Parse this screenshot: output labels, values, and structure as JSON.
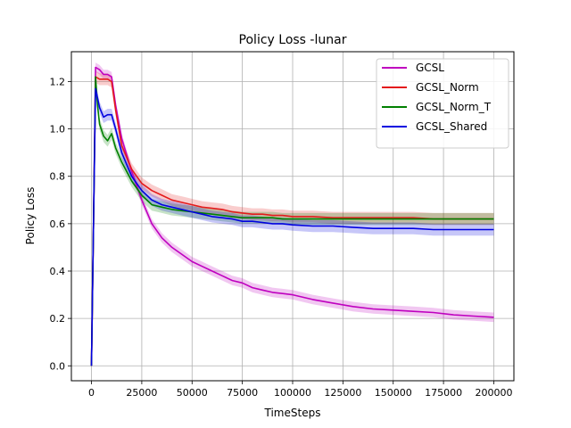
{
  "chart_data": {
    "type": "line",
    "title": "Policy Loss -lunar",
    "xlabel": "TimeSteps",
    "ylabel": "Policy Loss",
    "xlim": [
      -10000,
      210000
    ],
    "ylim": [
      -0.063,
      1.326
    ],
    "xticks": [
      0,
      25000,
      50000,
      75000,
      100000,
      125000,
      150000,
      175000,
      200000
    ],
    "xtick_labels": [
      "0",
      "25000",
      "50000",
      "75000",
      "100000",
      "125000",
      "150000",
      "175000",
      "200000"
    ],
    "yticks": [
      0.0,
      0.2,
      0.4,
      0.6,
      0.8,
      1.0,
      1.2
    ],
    "ytick_labels": [
      "0.0",
      "0.2",
      "0.4",
      "0.6",
      "0.8",
      "1.0",
      "1.2"
    ],
    "grid": true,
    "legend_position": "top-right",
    "legend": [
      "GCSL",
      "GCSL_Norm",
      "GCSL_Norm_T",
      "GCSL_Shared"
    ],
    "series": [
      {
        "name": "GCSL",
        "color": "#bf00bf",
        "band": 0.02,
        "x": [
          0,
          1000,
          2000,
          4000,
          6000,
          8000,
          10000,
          12000,
          15000,
          20000,
          25000,
          30000,
          35000,
          40000,
          45000,
          50000,
          55000,
          60000,
          65000,
          70000,
          75000,
          80000,
          85000,
          90000,
          95000,
          100000,
          110000,
          120000,
          130000,
          140000,
          150000,
          160000,
          170000,
          180000,
          190000,
          200000
        ],
        "y": [
          0.0,
          0.6,
          1.26,
          1.25,
          1.23,
          1.23,
          1.22,
          1.1,
          0.96,
          0.82,
          0.7,
          0.6,
          0.54,
          0.5,
          0.47,
          0.44,
          0.42,
          0.4,
          0.38,
          0.36,
          0.35,
          0.33,
          0.32,
          0.31,
          0.305,
          0.3,
          0.28,
          0.265,
          0.25,
          0.24,
          0.235,
          0.23,
          0.225,
          0.215,
          0.21,
          0.205
        ]
      },
      {
        "name": "GCSL_Norm",
        "color": "#e41a1c",
        "band": 0.025,
        "x": [
          0,
          1000,
          2000,
          4000,
          6000,
          8000,
          10000,
          12000,
          15000,
          20000,
          25000,
          30000,
          35000,
          40000,
          45000,
          50000,
          55000,
          60000,
          65000,
          70000,
          75000,
          80000,
          85000,
          90000,
          95000,
          100000,
          110000,
          120000,
          130000,
          140000,
          150000,
          160000,
          170000,
          180000,
          190000,
          200000
        ],
        "y": [
          0.0,
          0.6,
          1.22,
          1.21,
          1.21,
          1.21,
          1.2,
          1.08,
          0.93,
          0.83,
          0.77,
          0.74,
          0.72,
          0.7,
          0.69,
          0.68,
          0.67,
          0.665,
          0.66,
          0.65,
          0.645,
          0.64,
          0.64,
          0.635,
          0.635,
          0.63,
          0.63,
          0.625,
          0.625,
          0.625,
          0.625,
          0.625,
          0.62,
          0.62,
          0.62,
          0.62
        ]
      },
      {
        "name": "GCSL_Norm_T",
        "color": "#008000",
        "band": 0.025,
        "x": [
          0,
          1000,
          2000,
          3000,
          4000,
          6000,
          8000,
          10000,
          12000,
          15000,
          20000,
          25000,
          30000,
          35000,
          40000,
          45000,
          50000,
          55000,
          60000,
          65000,
          70000,
          75000,
          80000,
          85000,
          90000,
          95000,
          100000,
          110000,
          120000,
          130000,
          140000,
          150000,
          160000,
          170000,
          180000,
          190000,
          200000
        ],
        "y": [
          0.0,
          0.6,
          1.22,
          1.1,
          1.02,
          0.97,
          0.95,
          0.98,
          0.92,
          0.86,
          0.78,
          0.72,
          0.68,
          0.67,
          0.66,
          0.655,
          0.65,
          0.645,
          0.64,
          0.635,
          0.63,
          0.625,
          0.625,
          0.625,
          0.625,
          0.62,
          0.62,
          0.62,
          0.62,
          0.62,
          0.62,
          0.62,
          0.62,
          0.62,
          0.62,
          0.62,
          0.62
        ]
      },
      {
        "name": "GCSL_Shared",
        "color": "#0000e0",
        "band": 0.025,
        "x": [
          0,
          1000,
          2000,
          4000,
          6000,
          8000,
          10000,
          12000,
          15000,
          20000,
          25000,
          30000,
          35000,
          40000,
          45000,
          50000,
          55000,
          60000,
          65000,
          70000,
          75000,
          80000,
          85000,
          90000,
          95000,
          100000,
          110000,
          120000,
          130000,
          140000,
          150000,
          160000,
          170000,
          180000,
          190000,
          200000
        ],
        "y": [
          0.0,
          0.6,
          1.17,
          1.09,
          1.05,
          1.06,
          1.06,
          1.0,
          0.9,
          0.8,
          0.74,
          0.7,
          0.68,
          0.67,
          0.66,
          0.65,
          0.64,
          0.63,
          0.625,
          0.62,
          0.61,
          0.61,
          0.605,
          0.6,
          0.6,
          0.595,
          0.59,
          0.59,
          0.585,
          0.58,
          0.58,
          0.58,
          0.575,
          0.575,
          0.575,
          0.575
        ]
      }
    ]
  }
}
